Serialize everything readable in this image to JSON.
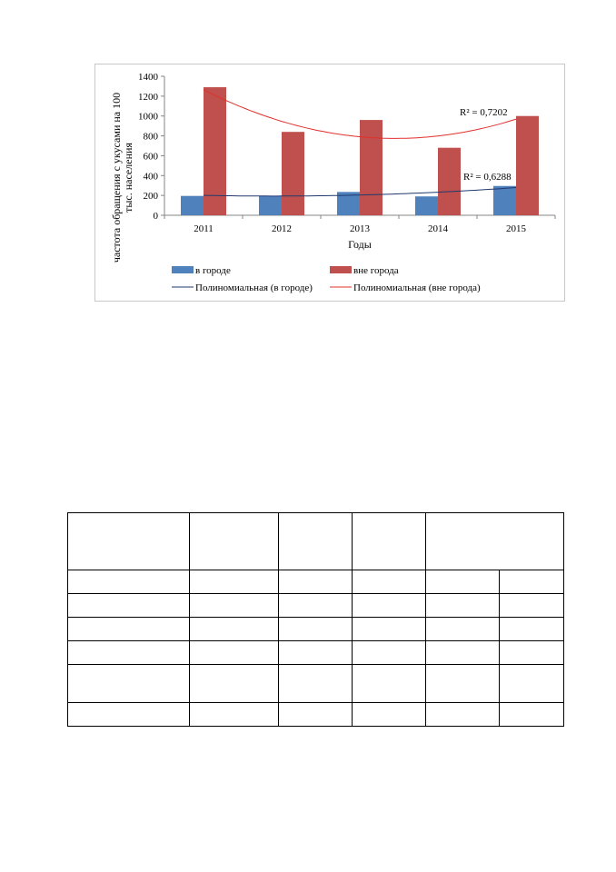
{
  "chart_data": {
    "type": "bar",
    "categories": [
      "2011",
      "2012",
      "2013",
      "2014",
      "2015"
    ],
    "series": [
      {
        "name": "в городе",
        "values": [
          195,
          195,
          235,
          190,
          295
        ],
        "color": "#4F81BD"
      },
      {
        "name": "вне города",
        "values": [
          1290,
          840,
          960,
          680,
          1000
        ],
        "color": "#C0504D"
      }
    ],
    "trendlines": [
      {
        "name": "Полиномиальная (в городе)",
        "series": "в городе",
        "type": "polynomial",
        "r2": "R² = 0,6288",
        "color": "#1F3A6E"
      },
      {
        "name": "Полиномиальная (вне города)",
        "series": "вне города",
        "type": "polynomial",
        "r2": "R² = 0,7202",
        "color": "#E0302A"
      }
    ],
    "xlabel": "Годы",
    "ylabel": "частота обращения с укусами на 100 тыс. населения",
    "ylabel_lines": [
      "частота обращения с укусами на 100",
      "тыс. населения"
    ],
    "ylim": [
      0,
      1400
    ],
    "yticks": [
      "0",
      "200",
      "400",
      "600",
      "800",
      "1000",
      "1200",
      "1400"
    ],
    "grid": false,
    "legend_position": "bottom"
  },
  "table": {
    "rows": [
      [
        "",
        "",
        "",
        "",
        ""
      ],
      [
        "",
        "",
        "",
        "",
        "",
        ""
      ],
      [
        "",
        "",
        "",
        "",
        "",
        ""
      ],
      [
        "",
        "",
        "",
        "",
        "",
        ""
      ],
      [
        "",
        "",
        "",
        "",
        "",
        ""
      ],
      [
        "",
        "",
        "",
        "",
        "",
        ""
      ],
      [
        "",
        "",
        "",
        "",
        "",
        ""
      ]
    ]
  }
}
